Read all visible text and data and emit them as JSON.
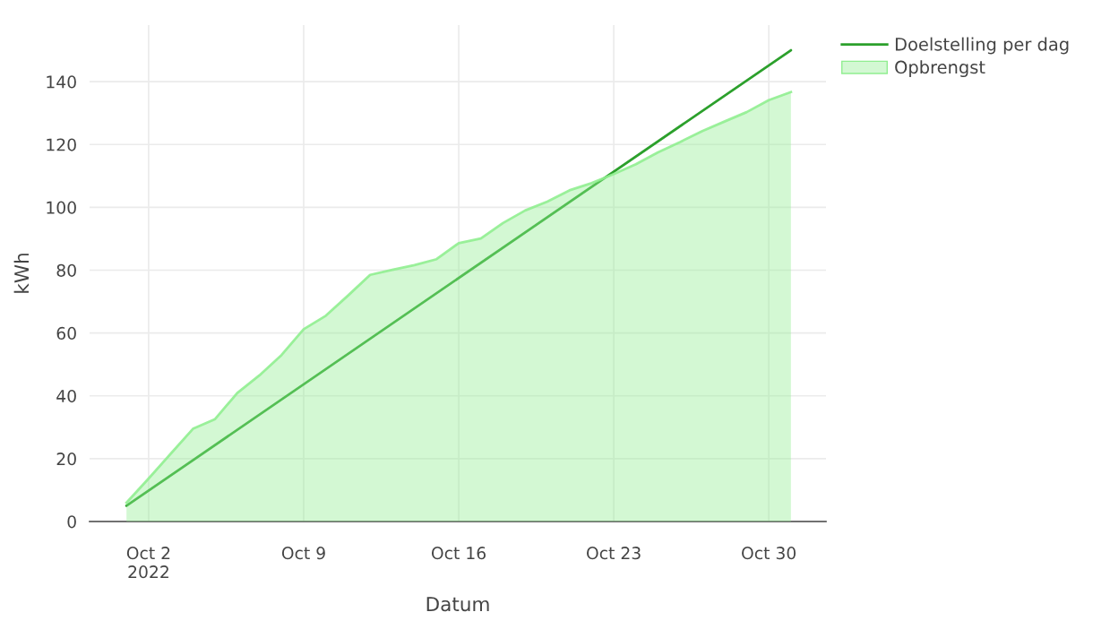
{
  "chart_data": {
    "type": "line",
    "xlabel": "Datum",
    "ylabel": "kWh",
    "series": [
      {
        "name": "Doelstelling per dag",
        "color": "#2ca02c",
        "x": [
          "2022-10-01",
          "2022-10-31"
        ],
        "values": [
          5,
          150
        ]
      },
      {
        "name": "Opbrengst",
        "type": "area",
        "color": "#90ee90",
        "x": [
          "2022-10-01",
          "2022-10-02",
          "2022-10-03",
          "2022-10-04",
          "2022-10-05",
          "2022-10-06",
          "2022-10-07",
          "2022-10-08",
          "2022-10-09",
          "2022-10-10",
          "2022-10-11",
          "2022-10-12",
          "2022-10-13",
          "2022-10-14",
          "2022-10-15",
          "2022-10-16",
          "2022-10-17",
          "2022-10-18",
          "2022-10-19",
          "2022-10-20",
          "2022-10-21",
          "2022-10-22",
          "2022-10-23",
          "2022-10-24",
          "2022-10-25",
          "2022-10-26",
          "2022-10-27",
          "2022-10-28",
          "2022-10-29",
          "2022-10-30",
          "2022-10-31"
        ],
        "values": [
          6,
          13.7,
          21.6,
          29.5,
          32.6,
          40.9,
          46.5,
          53,
          61.2,
          65.5,
          71.9,
          78.5,
          80.1,
          81.6,
          83.5,
          88.6,
          90.1,
          95,
          99,
          101.8,
          105.4,
          107.7,
          110.6,
          113.7,
          117.5,
          120.8,
          124.3,
          127.3,
          130.3,
          134.1,
          136.7
        ]
      }
    ],
    "xlim": [
      "2022-09-29T08:00",
      "2022-11-01T14:00"
    ],
    "xticks": [
      {
        "value": "2022-10-02",
        "label": "Oct 2\n2022"
      },
      {
        "value": "2022-10-09",
        "label": "Oct 9"
      },
      {
        "value": "2022-10-16",
        "label": "Oct 16"
      },
      {
        "value": "2022-10-23",
        "label": "Oct 23"
      },
      {
        "value": "2022-10-30",
        "label": "Oct 30"
      }
    ],
    "ylim": [
      0,
      158
    ],
    "yticks": [
      0,
      20,
      40,
      60,
      80,
      100,
      120,
      140
    ],
    "grid": true,
    "legend": "top right",
    "line_style": "solid"
  }
}
